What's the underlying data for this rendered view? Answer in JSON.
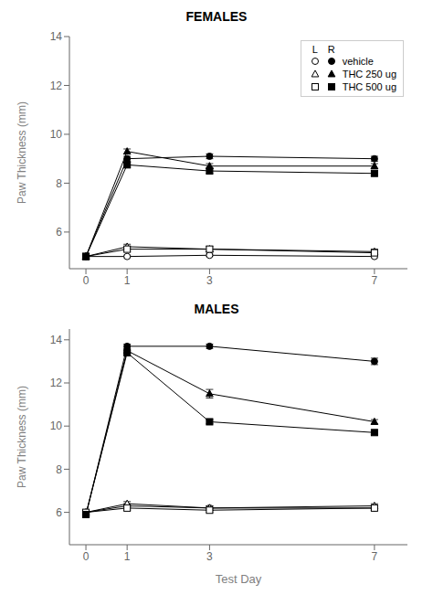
{
  "chart_data": [
    {
      "type": "line",
      "title": "FEMALES",
      "y_label": "Paw Thickness (mm)",
      "x": [
        0,
        1,
        3,
        7
      ],
      "xlim": [
        -0.4,
        7.8
      ],
      "xticks": [
        0,
        1,
        3,
        7
      ],
      "ylim": [
        4.5,
        14.0
      ],
      "yticks": [
        6,
        8,
        10,
        12,
        14
      ],
      "color": "black",
      "legend": "upper right",
      "series": [
        {
          "name": "vehicle",
          "marker": "circle",
          "sides": [
            {
              "name": "L",
              "values": [
                5.0,
                5.0,
                5.05,
                5.0
              ],
              "errors": [
                0.05,
                0.05,
                0.05,
                0.05
              ]
            },
            {
              "name": "R",
              "values": [
                5.0,
                9.0,
                9.1,
                9.0
              ],
              "errors": [
                0.05,
                0.1,
                0.1,
                0.1
              ]
            }
          ]
        },
        {
          "name": "THC 250 ug",
          "marker": "triangle",
          "sides": [
            {
              "name": "L",
              "values": [
                5.0,
                5.4,
                5.3,
                5.2
              ],
              "errors": [
                0.05,
                0.1,
                0.1,
                0.1
              ]
            },
            {
              "name": "R",
              "values": [
                5.0,
                9.3,
                8.7,
                8.7
              ],
              "errors": [
                0.05,
                0.1,
                0.1,
                0.1
              ]
            }
          ]
        },
        {
          "name": "THC 500 ug",
          "marker": "square",
          "sides": [
            {
              "name": "L",
              "values": [
                5.0,
                5.3,
                5.3,
                5.15
              ],
              "errors": [
                0.05,
                0.1,
                0.1,
                0.1
              ]
            },
            {
              "name": "R",
              "values": [
                5.0,
                8.75,
                8.5,
                8.4
              ],
              "errors": [
                0.05,
                0.1,
                0.1,
                0.1
              ]
            }
          ]
        }
      ]
    },
    {
      "type": "line",
      "title": "MALES",
      "y_label": "Paw Thickness (mm)",
      "x_label": "Test Day",
      "x": [
        0,
        1,
        3,
        7
      ],
      "xlim": [
        -0.4,
        7.8
      ],
      "xticks": [
        0,
        1,
        3,
        7
      ],
      "ylim": [
        4.5,
        14.5
      ],
      "yticks": [
        6,
        8,
        10,
        12,
        14
      ],
      "color": "black",
      "series": [
        {
          "name": "vehicle",
          "marker": "circle",
          "sides": [
            {
              "name": "L",
              "values": [
                6.0,
                6.3,
                6.2,
                6.2
              ],
              "errors": [
                0.05,
                0.1,
                0.1,
                0.1
              ]
            },
            {
              "name": "R",
              "values": [
                5.9,
                13.7,
                13.7,
                13.0
              ],
              "errors": [
                0.05,
                0.1,
                0.1,
                0.15
              ]
            }
          ]
        },
        {
          "name": "THC 250 ug",
          "marker": "triangle",
          "sides": [
            {
              "name": "L",
              "values": [
                6.0,
                6.4,
                6.2,
                6.3
              ],
              "errors": [
                0.05,
                0.1,
                0.1,
                0.1
              ]
            },
            {
              "name": "R",
              "values": [
                5.9,
                13.5,
                11.5,
                10.2
              ],
              "errors": [
                0.05,
                0.1,
                0.2,
                0.1
              ]
            }
          ]
        },
        {
          "name": "THC 500 ug",
          "marker": "square",
          "sides": [
            {
              "name": "L",
              "values": [
                6.0,
                6.2,
                6.1,
                6.2
              ],
              "errors": [
                0.05,
                0.1,
                0.1,
                0.1
              ]
            },
            {
              "name": "R",
              "values": [
                5.9,
                13.4,
                10.2,
                9.7
              ],
              "errors": [
                0.05,
                0.1,
                0.1,
                0.1
              ]
            }
          ]
        }
      ]
    }
  ]
}
